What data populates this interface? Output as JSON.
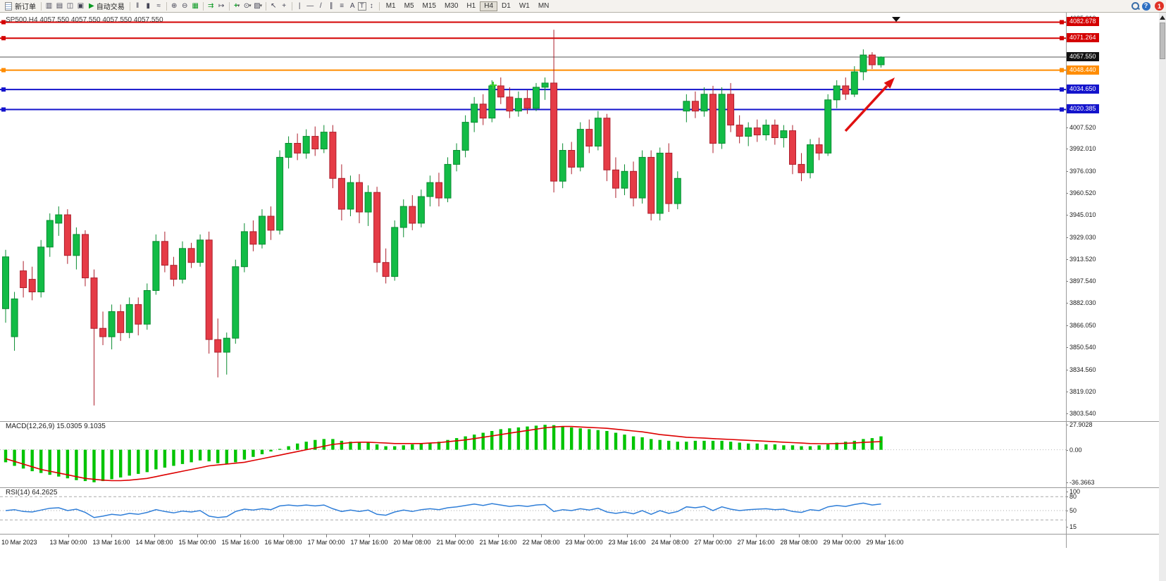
{
  "header": {
    "symbol_title": "SP500,H4 4057.550 4057.550 4057.550 4057.550"
  },
  "toolbar": {
    "new_order": "新订单",
    "auto_trading": "自动交易",
    "timeframes": [
      "M1",
      "M5",
      "M15",
      "M30",
      "H1",
      "H4",
      "D1",
      "W1",
      "MN"
    ],
    "active_timeframe": "H4",
    "notification_count": "1"
  },
  "indicators": {
    "macd_label": "MACD(12,26,9) 15.0305 9.1035",
    "rsi_label": "RSI(14) 64.2625"
  },
  "chart_data": {
    "type": "candlestick",
    "symbol": "SP500",
    "timeframe": "H4",
    "colors": {
      "up": "#12bc46",
      "up_border": "#0a8c31",
      "down": "#e53b46",
      "down_border": "#ad1f2c",
      "macd_hist": "#00c400",
      "macd_signal": "#dd0000",
      "rsi_line": "#2f7ed8",
      "annotation": "#e01010",
      "plus_marker": "#3ed02e"
    },
    "price_chart": {
      "y_range": [
        3797.8,
        4089.2
      ],
      "axis_labels": [
        "4085.010",
        "4007.520",
        "3992.010",
        "3976.030",
        "3960.520",
        "3945.010",
        "3929.030",
        "3913.520",
        "3897.540",
        "3882.030",
        "3866.050",
        "3850.540",
        "3834.560",
        "3819.020",
        "3803.540"
      ],
      "badges": [
        {
          "text": "4082.678",
          "value": 4082.678,
          "bg": "#d40000"
        },
        {
          "text": "4071.264",
          "value": 4071.264,
          "bg": "#d40000"
        },
        {
          "text": "4057.550",
          "value": 4057.55,
          "bg": "#111111"
        },
        {
          "text": "4048.440",
          "value": 4048.44,
          "bg": "#ff8c00"
        },
        {
          "text": "4034.650",
          "value": 4034.65,
          "bg": "#1414cc"
        },
        {
          "text": "4020.385",
          "value": 4020.385,
          "bg": "#1414cc"
        }
      ],
      "h_lines": [
        {
          "value": 4082.678,
          "color": "#d40000",
          "width": 2
        },
        {
          "value": 4071.264,
          "color": "#d40000",
          "width": 2
        },
        {
          "value": 4048.44,
          "color": "#ff8c00",
          "width": 2
        },
        {
          "value": 4034.65,
          "color": "#1414cc",
          "width": 2
        },
        {
          "value": 4020.385,
          "color": "#1414cc",
          "width": 2
        }
      ],
      "bid_line": {
        "value": 4057.55,
        "color": "#555555",
        "label": "4057.550"
      },
      "candles": [
        [
          3878,
          3920,
          3868,
          3915
        ],
        [
          3858,
          3890,
          3848,
          3885
        ],
        [
          3905,
          3912,
          3886,
          3893
        ],
        [
          3899,
          3908,
          3884,
          3890
        ],
        [
          3890,
          3927,
          3886,
          3922
        ],
        [
          3922,
          3946,
          3915,
          3941
        ],
        [
          3939,
          3951,
          3930,
          3945
        ],
        [
          3945,
          3949,
          3910,
          3916
        ],
        [
          3916,
          3936,
          3906,
          3931
        ],
        [
          3931,
          3934,
          3894,
          3900
        ],
        [
          3900,
          3906,
          3809,
          3864
        ],
        [
          3864,
          3876,
          3852,
          3858
        ],
        [
          3858,
          3881,
          3849,
          3876
        ],
        [
          3876,
          3881,
          3855,
          3861
        ],
        [
          3861,
          3886,
          3857,
          3881
        ],
        [
          3881,
          3886,
          3859,
          3867
        ],
        [
          3867,
          3896,
          3863,
          3891
        ],
        [
          3891,
          3931,
          3888,
          3926
        ],
        [
          3926,
          3933,
          3904,
          3909
        ],
        [
          3909,
          3915,
          3894,
          3899
        ],
        [
          3899,
          3926,
          3896,
          3921
        ],
        [
          3921,
          3925,
          3907,
          3911
        ],
        [
          3911,
          3931,
          3908,
          3927
        ],
        [
          3927,
          3933,
          3846,
          3856
        ],
        [
          3856,
          3871,
          3829,
          3847
        ],
        [
          3847,
          3861,
          3831,
          3857
        ],
        [
          3857,
          3913,
          3853,
          3908
        ],
        [
          3908,
          3939,
          3904,
          3933
        ],
        [
          3933,
          3941,
          3919,
          3924
        ],
        [
          3924,
          3949,
          3921,
          3944
        ],
        [
          3944,
          3951,
          3927,
          3934
        ],
        [
          3934,
          3991,
          3931,
          3986
        ],
        [
          3986,
          4001,
          3978,
          3996
        ],
        [
          3996,
          4003,
          3984,
          3989
        ],
        [
          3989,
          4006,
          3985,
          4001
        ],
        [
          4001,
          4008,
          3987,
          3992
        ],
        [
          3992,
          4009,
          3989,
          4004
        ],
        [
          4004,
          4009,
          3964,
          3971
        ],
        [
          3971,
          3981,
          3941,
          3949
        ],
        [
          3949,
          3973,
          3944,
          3968
        ],
        [
          3968,
          3974,
          3939,
          3947
        ],
        [
          3947,
          3966,
          3937,
          3961
        ],
        [
          3961,
          3965,
          3904,
          3911
        ],
        [
          3911,
          3921,
          3896,
          3901
        ],
        [
          3901,
          3941,
          3898,
          3936
        ],
        [
          3936,
          3956,
          3929,
          3951
        ],
        [
          3951,
          3959,
          3934,
          3939
        ],
        [
          3939,
          3963,
          3936,
          3958
        ],
        [
          3958,
          3973,
          3951,
          3968
        ],
        [
          3968,
          3975,
          3951,
          3957
        ],
        [
          3957,
          3986,
          3954,
          3981
        ],
        [
          3981,
          3996,
          3976,
          3991
        ],
        [
          3991,
          4016,
          3986,
          4011
        ],
        [
          4011,
          4029,
          4004,
          4024
        ],
        [
          4024,
          4031,
          4009,
          4014
        ],
        [
          4014,
          4041,
          4011,
          4037
        ],
        [
          4037,
          4043,
          4024,
          4029
        ],
        [
          4029,
          4036,
          4014,
          4019
        ],
        [
          4019,
          4033,
          4015,
          4028
        ],
        [
          4028,
          4034,
          4017,
          4021
        ],
        [
          4021,
          4039,
          4019,
          4036
        ],
        [
          4036,
          4043,
          4027,
          4039
        ],
        [
          4039,
          4077,
          3961,
          3969
        ],
        [
          3969,
          3996,
          3964,
          3991
        ],
        [
          3991,
          3997,
          3974,
          3979
        ],
        [
          3979,
          4011,
          3976,
          4006
        ],
        [
          4006,
          4013,
          3989,
          3994
        ],
        [
          3994,
          4019,
          3991,
          4014
        ],
        [
          4014,
          4017,
          3969,
          3977
        ],
        [
          3977,
          3986,
          3957,
          3964
        ],
        [
          3964,
          3981,
          3959,
          3976
        ],
        [
          3976,
          3983,
          3951,
          3957
        ],
        [
          3957,
          3991,
          3953,
          3986
        ],
        [
          3986,
          3991,
          3941,
          3946
        ],
        [
          3946,
          3993,
          3941,
          3989
        ],
        [
          3989,
          3996,
          3947,
          3953
        ],
        [
          3953,
          3976,
          3949,
          3971
        ],
        [
          4019,
          4031,
          4011,
          4026
        ],
        [
          4026,
          4033,
          4014,
          4019
        ],
        [
          4019,
          4036,
          4015,
          4031
        ],
        [
          4031,
          4037,
          3989,
          3996
        ],
        [
          3996,
          4036,
          3992,
          4031
        ],
        [
          4031,
          4039,
          4004,
          4009
        ],
        [
          4009,
          4016,
          3996,
          4001
        ],
        [
          4001,
          4011,
          3994,
          4007
        ],
        [
          4007,
          4013,
          3997,
          4002
        ],
        [
          4002,
          4013,
          3998,
          4009
        ],
        [
          4009,
          4013,
          3995,
          4000
        ],
        [
          4000,
          4009,
          3993,
          4005
        ],
        [
          4005,
          4009,
          3974,
          3981
        ],
        [
          3981,
          3989,
          3969,
          3975
        ],
        [
          3975,
          3999,
          3971,
          3995
        ],
        [
          3995,
          4000,
          3984,
          3989
        ],
        [
          3989,
          4031,
          3987,
          4027
        ],
        [
          4027,
          4041,
          4021,
          4037
        ],
        [
          4037,
          4043,
          4027,
          4031
        ],
        [
          4031,
          4051,
          4029,
          4047
        ],
        [
          4047,
          4063,
          4041,
          4059
        ],
        [
          4059,
          4061,
          4049,
          4052
        ],
        [
          4052,
          4058,
          4050,
          4057.55
        ]
      ]
    },
    "macd": {
      "y_range": [
        -42,
        32
      ],
      "scale": [
        {
          "text": "27.9028",
          "v": 27.9028
        },
        {
          "text": "0.00",
          "v": 0
        },
        {
          "text": "-36.3663",
          "v": -36.3663
        }
      ],
      "histogram": [
        -14,
        -18,
        -21,
        -24,
        -26,
        -28,
        -30,
        -32,
        -34,
        -35,
        -36.4,
        -35,
        -33,
        -31,
        -29,
        -27,
        -25,
        -22,
        -20,
        -18,
        -16,
        -14,
        -12,
        -13,
        -15,
        -16,
        -14,
        -11,
        -8,
        -5,
        -2,
        1,
        4,
        7,
        9,
        11,
        12,
        12,
        10,
        9,
        8,
        8,
        6,
        4,
        4,
        5,
        6,
        7,
        8,
        9,
        11,
        13,
        15,
        17,
        19,
        21,
        23,
        24,
        25,
        26,
        27,
        27.9,
        27.5,
        26,
        25,
        24,
        23,
        22,
        21,
        19,
        17,
        15,
        14,
        12,
        11,
        10,
        9,
        9,
        10,
        10,
        10,
        10,
        9,
        8,
        7,
        7,
        6,
        6,
        5,
        5,
        4,
        4,
        5,
        6,
        8,
        9,
        10,
        12,
        13,
        15.03
      ],
      "signal": [
        -10,
        -13,
        -16,
        -19,
        -22,
        -24,
        -26,
        -28,
        -30,
        -32,
        -33,
        -34,
        -34.5,
        -34.5,
        -34,
        -33,
        -32,
        -30,
        -28,
        -26,
        -24,
        -22,
        -20,
        -18,
        -17,
        -16,
        -15,
        -14,
        -12,
        -10,
        -8,
        -6,
        -4,
        -2,
        0,
        2,
        4,
        6,
        7,
        8,
        8.5,
        8.5,
        8,
        7.5,
        7,
        7,
        7,
        7,
        7.5,
        8,
        9,
        10,
        11,
        12.5,
        14,
        15.5,
        17,
        18.5,
        20,
        21.5,
        23,
        24.5,
        25.5,
        26,
        26,
        25.5,
        25,
        24.5,
        24,
        23,
        22,
        21,
        20,
        18.5,
        17,
        16,
        15,
        14,
        13.5,
        13,
        12.5,
        12,
        11.5,
        11,
        10.5,
        10,
        9.5,
        9,
        8.5,
        8,
        7.5,
        7,
        6.8,
        6.8,
        7,
        7.3,
        7.7,
        8.2,
        8.7,
        9.1
      ]
    },
    "rsi": {
      "y_range": [
        0,
        100
      ],
      "levels": [
        80,
        50,
        30
      ],
      "scale": [
        {
          "text": "100",
          "v": 100
        },
        {
          "text": "80",
          "v": 80
        },
        {
          "text": "50",
          "v": 50
        },
        {
          "text": "15",
          "v": 15
        }
      ],
      "values": [
        50,
        52,
        48,
        47,
        51,
        55,
        56,
        50,
        53,
        46,
        35,
        38,
        42,
        40,
        44,
        42,
        46,
        52,
        48,
        45,
        49,
        47,
        50,
        38,
        35,
        37,
        48,
        53,
        51,
        54,
        52,
        60,
        62,
        60,
        62,
        60,
        62,
        54,
        48,
        51,
        48,
        51,
        42,
        40,
        47,
        51,
        48,
        52,
        54,
        52,
        56,
        58,
        61,
        64,
        61,
        65,
        62,
        59,
        61,
        59,
        62,
        63,
        48,
        52,
        50,
        54,
        51,
        55,
        47,
        44,
        47,
        43,
        50,
        42,
        50,
        44,
        48,
        58,
        56,
        59,
        50,
        58,
        53,
        50,
        52,
        53,
        54,
        52,
        53,
        48,
        46,
        52,
        50,
        58,
        61,
        59,
        63,
        66,
        62,
        64.26
      ],
      "last_value": 64.2625
    },
    "x_axis_labels": [
      "10 Mar 2023",
      "13 Mar 00:00",
      "13 Mar 16:00",
      "14 Mar 08:00",
      "15 Mar 00:00",
      "15 Mar 16:00",
      "16 Mar 08:00",
      "17 Mar 00:00",
      "17 Mar 16:00",
      "20 Mar 08:00",
      "21 Mar 00:00",
      "21 Mar 16:00",
      "22 Mar 08:00",
      "23 Mar 00:00",
      "23 Mar 16:00",
      "24 Mar 08:00",
      "27 Mar 00:00",
      "27 Mar 16:00",
      "28 Mar 08:00",
      "29 Mar 00:00",
      "29 Mar 16:00"
    ]
  }
}
